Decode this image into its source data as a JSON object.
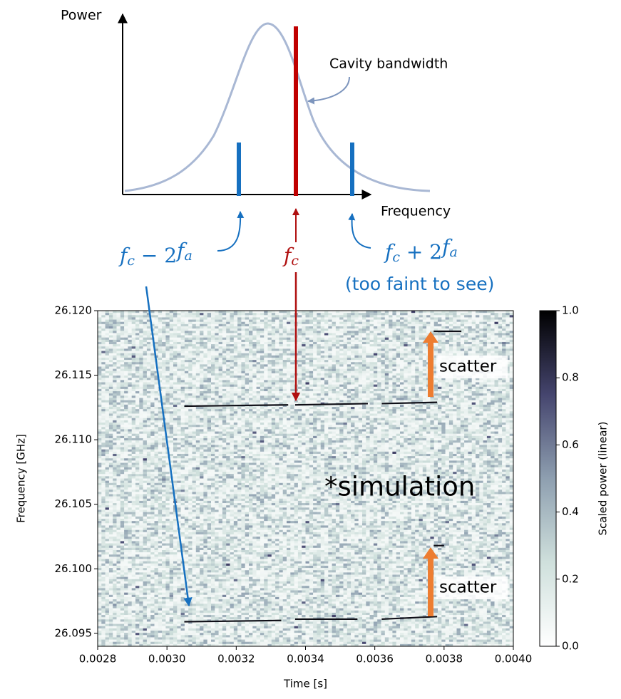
{
  "diagram": {
    "y_axis_label": "Power",
    "x_axis_label": "Frequency",
    "curve_label": "Cavity bandwidth",
    "lower_sideband": [
      "f",
      "c",
      " − 2",
      "f",
      "a"
    ],
    "carrier": [
      "f",
      "c"
    ],
    "upper_sideband": [
      "f",
      "c",
      " + 2",
      "f",
      "a"
    ],
    "upper_note": "(too faint to see)"
  },
  "chart_data": {
    "type": "spectrogram",
    "x_label": "Time [s]",
    "y_label": "Frequency [GHz]",
    "colorbar_label": "Scaled power (linear)",
    "annotation": "*simulation",
    "scatter_labels": [
      "scatter",
      "scatter"
    ],
    "xlim": [
      0.0028,
      0.004
    ],
    "ylim": [
      26.094,
      26.12
    ],
    "xticks": [
      0.0028,
      {
        "value": 0.003,
        "label": "0.0030"
      },
      0.0032,
      0.0034,
      0.0036,
      0.0038,
      {
        "value": 0.004,
        "label": "0.0040"
      }
    ],
    "yticks": [
      {
        "value": 26.095,
        "label": "26.095"
      },
      {
        "value": 26.1,
        "label": "26.100"
      },
      {
        "value": 26.105,
        "label": "26.105"
      },
      {
        "value": 26.11,
        "label": "26.110"
      },
      {
        "value": 26.115,
        "label": "26.115"
      },
      {
        "value": 26.12,
        "label": "26.120"
      }
    ],
    "clim": [
      0,
      1
    ],
    "cticks": [
      {
        "value": 0,
        "label": "0.0"
      },
      0.2,
      0.4,
      0.6,
      0.8,
      {
        "value": 1,
        "label": "1.0"
      }
    ],
    "colormap": [
      "#ffffff",
      "#cfe0dc",
      "#8e9fb0",
      "#45456e",
      "#000000"
    ],
    "segments": [
      {
        "x": [
          0.00305,
          0.00335
        ],
        "y": [
          26.1126,
          26.1127
        ]
      },
      {
        "x": [
          0.00337,
          0.00358
        ],
        "y": [
          26.1127,
          26.1128
        ]
      },
      {
        "x": [
          0.00362,
          0.00378
        ],
        "y": [
          26.1128,
          26.1129
        ]
      },
      {
        "x": [
          0.00305,
          0.00333
        ],
        "y": [
          26.0959,
          26.096
        ]
      },
      {
        "x": [
          0.00337,
          0.00355
        ],
        "y": [
          26.0961,
          26.0961
        ]
      },
      {
        "x": [
          0.00362,
          0.00378
        ],
        "y": [
          26.0961,
          26.0963
        ]
      },
      {
        "x": [
          0.00377,
          0.00385
        ],
        "y": [
          26.1184,
          26.1184
        ]
      },
      {
        "x": [
          0.00377,
          0.0038
        ],
        "y": [
          26.1018,
          26.1018
        ]
      }
    ]
  }
}
